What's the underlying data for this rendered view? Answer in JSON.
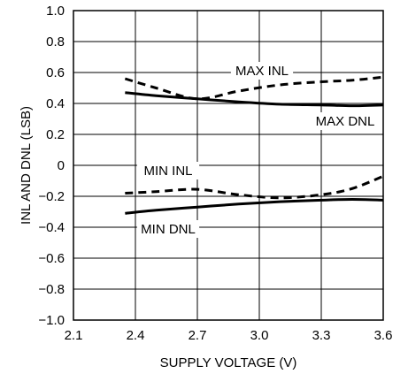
{
  "chart_data": {
    "type": "line",
    "xlabel": "SUPPLY VOLTAGE (V)",
    "ylabel": "INL AND DNL (LSB)",
    "xlim": [
      2.1,
      3.6
    ],
    "ylim": [
      -1.0,
      1.0
    ],
    "x_ticks": [
      "2.1",
      "2.4",
      "2.7",
      "3.0",
      "3.3",
      "3.6"
    ],
    "y_ticks": [
      "1.0",
      "0.8",
      "0.6",
      "0.4",
      "0.2",
      "0",
      "−0.2",
      "−0.4",
      "−0.6",
      "−0.8",
      "−1.0"
    ],
    "grid": true,
    "series": [
      {
        "name": "MAX INL",
        "style": "dashed",
        "x": [
          2.35,
          2.5,
          2.7,
          2.9,
          3.1,
          3.3,
          3.45,
          3.6
        ],
        "values": [
          0.56,
          0.5,
          0.43,
          0.48,
          0.52,
          0.54,
          0.55,
          0.57
        ]
      },
      {
        "name": "MAX DNL",
        "style": "solid",
        "x": [
          2.35,
          2.5,
          2.7,
          2.9,
          3.1,
          3.3,
          3.45,
          3.6
        ],
        "values": [
          0.47,
          0.45,
          0.43,
          0.41,
          0.395,
          0.39,
          0.385,
          0.39
        ]
      },
      {
        "name": "MIN INL",
        "style": "dashed",
        "x": [
          2.35,
          2.5,
          2.7,
          2.9,
          3.1,
          3.3,
          3.45,
          3.6
        ],
        "values": [
          -0.18,
          -0.17,
          -0.155,
          -0.19,
          -0.21,
          -0.19,
          -0.15,
          -0.07
        ]
      },
      {
        "name": "MIN DNL",
        "style": "solid",
        "x": [
          2.35,
          2.5,
          2.7,
          2.9,
          3.1,
          3.3,
          3.45,
          3.6
        ],
        "values": [
          -0.31,
          -0.29,
          -0.27,
          -0.25,
          -0.235,
          -0.225,
          -0.22,
          -0.225
        ]
      }
    ],
    "annotations": [
      "MAX INL",
      "MAX DNL",
      "MIN INL",
      "MIN DNL"
    ]
  }
}
